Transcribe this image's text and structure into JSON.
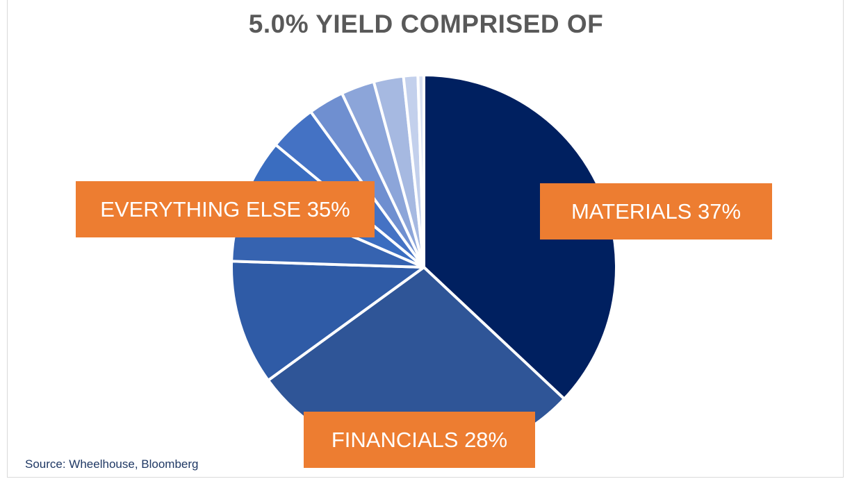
{
  "chart_data": {
    "type": "pie",
    "title": "5.0% YIELD COMPRISED OF",
    "slices": [
      {
        "label": "MATERIALS 37%",
        "value": 37,
        "color": "#002060"
      },
      {
        "label": "FINANCIALS 28%",
        "value": 28,
        "color": "#2f5597"
      },
      {
        "label": "",
        "value": 10.5,
        "color": "#2f5ba6"
      },
      {
        "label": "",
        "value": 6,
        "color": "#3663b0"
      },
      {
        "label": "",
        "value": 4.5,
        "color": "#3a6dc0"
      },
      {
        "label": "",
        "value": 4,
        "color": "#4472c4"
      },
      {
        "label": "",
        "value": 3,
        "color": "#6f8fd0"
      },
      {
        "label": "",
        "value": 2.8,
        "color": "#8ca5d9"
      },
      {
        "label": "",
        "value": 2.5,
        "color": "#a6b9e1"
      },
      {
        "label": "",
        "value": 1.2,
        "color": "#c3d0ec"
      },
      {
        "label": "",
        "value": 0.5,
        "color": "#d9e1f3"
      }
    ],
    "callouts": [
      {
        "text": "MATERIALS 37%"
      },
      {
        "text": "FINANCIALS 28%"
      },
      {
        "text": "EVERYTHING ELSE 35%"
      }
    ],
    "source": "Source: Wheelhouse, Bloomberg"
  }
}
